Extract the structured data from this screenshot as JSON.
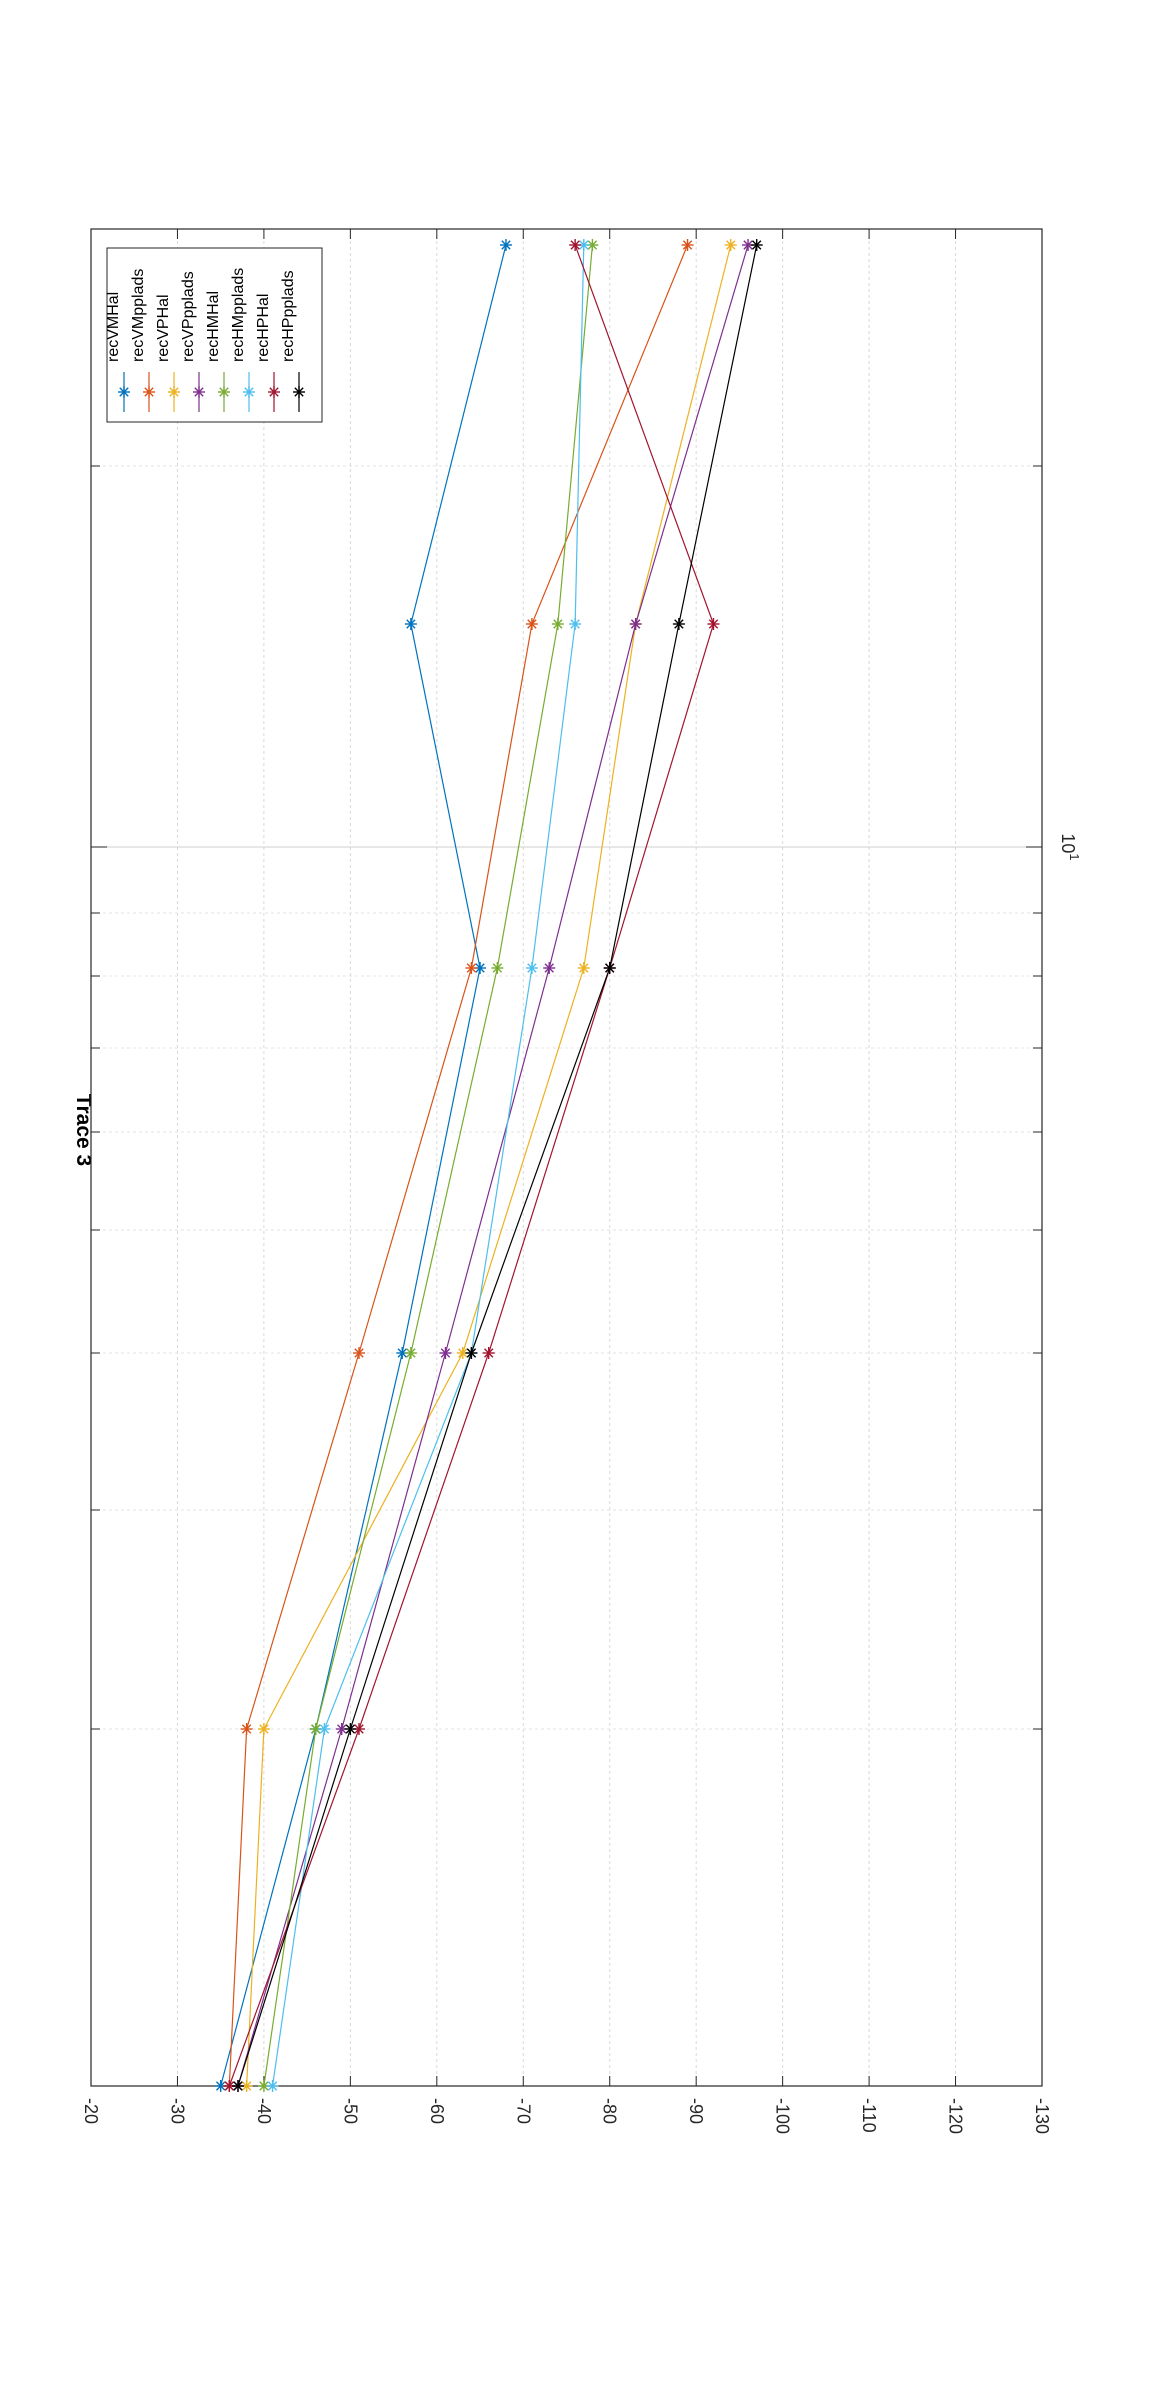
{
  "chart_data": {
    "type": "line",
    "orientation": "rotated-90-clockwise",
    "title": "Trace 3",
    "xscale": "log",
    "x_axis_label_shown": "10^1",
    "x_tick_label": {
      "base": "10",
      "exp": "1"
    },
    "yticks": [
      -20,
      -30,
      -40,
      -50,
      -60,
      -70,
      -80,
      -90,
      -100,
      -110,
      -120,
      -130
    ],
    "ytick_labels": [
      "-20",
      "-30",
      "-40",
      "-50",
      "-60",
      "-70",
      "-80",
      "-90",
      "-100",
      "-110",
      "-120",
      "-130"
    ],
    "ylim": [
      -130,
      -20
    ],
    "grid": true,
    "legend_placement": "top-left (rotated view: upper-right corner of page)",
    "marker": "asterisk",
    "x": [
      1,
      2,
      3,
      4,
      5,
      6
    ],
    "series": [
      {
        "name": "recVMHal",
        "color": "#0072BD",
        "values": [
          -35,
          -46,
          -56,
          -65,
          -57,
          -68
        ]
      },
      {
        "name": "recVMpplads",
        "color": "#D95319",
        "values": [
          -36,
          -38,
          -51,
          -64,
          -71,
          -89
        ]
      },
      {
        "name": "recVPHal",
        "color": "#EDB120",
        "values": [
          -38,
          -40,
          -63,
          -77,
          -83,
          -94
        ]
      },
      {
        "name": "recVPpplads",
        "color": "#7E2F8E",
        "values": [
          -37,
          -49,
          -61,
          -73,
          -83,
          -96
        ]
      },
      {
        "name": "recHMHal",
        "color": "#77AC30",
        "values": [
          -40,
          -46,
          -57,
          -67,
          -74,
          -78
        ]
      },
      {
        "name": "recHMpplads",
        "color": "#4DBEEE",
        "values": [
          -41,
          -47,
          -64,
          -71,
          -76,
          -77
        ]
      },
      {
        "name": "recHPHal",
        "color": "#A2142F",
        "values": [
          -36,
          -51,
          -66,
          -80,
          -92,
          -76
        ]
      },
      {
        "name": "recHPpplads",
        "color": "#000000",
        "values": [
          -37,
          -50,
          -64,
          -80,
          -88,
          -97
        ]
      }
    ]
  }
}
